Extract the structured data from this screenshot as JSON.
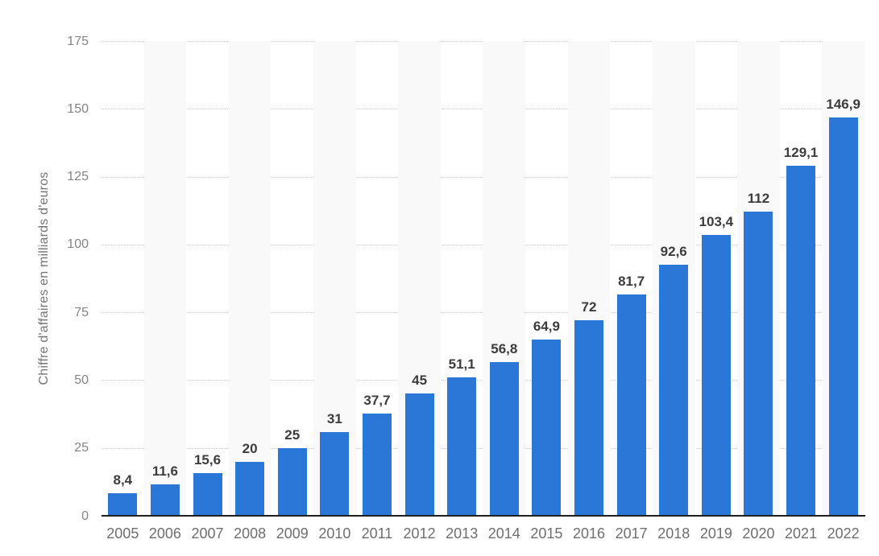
{
  "chart_data": {
    "type": "bar",
    "title": "",
    "categories": [
      "2005",
      "2006",
      "2007",
      "2008",
      "2009",
      "2010",
      "2011",
      "2012",
      "2013",
      "2014",
      "2015",
      "2016",
      "2017",
      "2018",
      "2019",
      "2020",
      "2021",
      "2022"
    ],
    "values": [
      8.4,
      11.6,
      15.6,
      20,
      25,
      31,
      37.7,
      45,
      51.1,
      56.8,
      64.9,
      72,
      81.7,
      92.6,
      103.4,
      112,
      129.1,
      146.9
    ],
    "value_labels": [
      "8,4",
      "11,6",
      "15,6",
      "20",
      "25",
      "31",
      "37,7",
      "45",
      "51,1",
      "56,8",
      "64,9",
      "72",
      "81,7",
      "92,6",
      "103,4",
      "112",
      "129,1",
      "146,9"
    ],
    "xlabel": "",
    "ylabel": "Chiffre d'affaires en milliards d'euros",
    "ylim": [
      0,
      175
    ],
    "yticks": [
      0,
      25,
      50,
      75,
      100,
      125,
      150,
      175
    ],
    "grid": "horizontal-dotted",
    "legend": "none",
    "plot_bands": "alternating light column bands behind every second year starting 2006",
    "colors": {
      "bar": "#2a77d8",
      "column_band": "#f9f9f9",
      "gridline": "#cccccc",
      "axis_line": "#1f1f1f",
      "value_label": "#3c3c3c",
      "tick_label": "#848484",
      "x_label": "#6e6e6e",
      "axis_title": "#757575",
      "background": "#ffffff"
    }
  }
}
